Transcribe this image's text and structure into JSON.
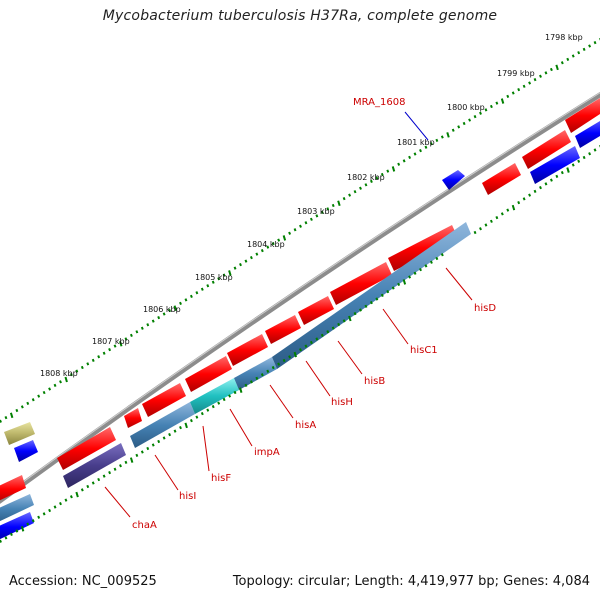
{
  "title": "Mycobacterium tuberculosis H37Ra, complete genome",
  "footer": {
    "accession_label": "Accession:",
    "accession": "NC_009525",
    "topology_label": "Topology:",
    "topology": "circular",
    "length_label": "Length:",
    "length": "4,419,977 bp",
    "genes_label": "Genes:",
    "genes": "4,084"
  },
  "scale_unit": "kbp",
  "ticks": [
    {
      "label": "1798 kbp"
    },
    {
      "label": "1799 kbp"
    },
    {
      "label": "1800 kbp"
    },
    {
      "label": "1801 kbp"
    },
    {
      "label": "1802 kbp"
    },
    {
      "label": "1803 kbp"
    },
    {
      "label": "1804 kbp"
    },
    {
      "label": "1805 kbp"
    },
    {
      "label": "1806 kbp"
    },
    {
      "label": "1807 kbp"
    },
    {
      "label": "1808 kbp"
    }
  ],
  "gene_labels": [
    {
      "name": "MRA_1608",
      "color": "#0000cc"
    },
    {
      "name": "hisD",
      "color": "#cc0000"
    },
    {
      "name": "hisC1",
      "color": "#cc0000"
    },
    {
      "name": "hisB",
      "color": "#cc0000"
    },
    {
      "name": "hisH",
      "color": "#cc0000"
    },
    {
      "name": "hisA",
      "color": "#cc0000"
    },
    {
      "name": "impA",
      "color": "#cc0000"
    },
    {
      "name": "hisF",
      "color": "#cc0000"
    },
    {
      "name": "hisI",
      "color": "#cc0000"
    },
    {
      "name": "chaA",
      "color": "#cc0000"
    }
  ],
  "colors": {
    "forward_cds": "#ff0000",
    "reverse_cds": "#0000ff",
    "operon_blue": "#4682b4",
    "operon_cyan": "#20c0c0",
    "dark_purple": "#483d8b",
    "khaki": "#bdb76b",
    "backbone": "#808080",
    "gc_skew": "#008000"
  }
}
